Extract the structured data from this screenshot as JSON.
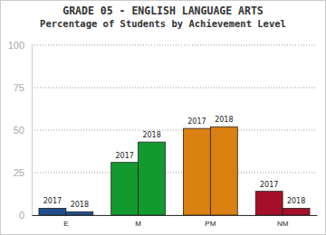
{
  "chart_data": {
    "type": "bar",
    "title": "GRADE 05 - ENGLISH LANGUAGE ARTS",
    "subtitle": "Percentage of Students by Achievement Level",
    "categories": [
      "E",
      "M",
      "PM",
      "NM"
    ],
    "series": [
      {
        "name": "2017",
        "values": [
          4,
          31,
          51,
          14
        ],
        "colors": [
          "#1f4e8c",
          "#139a2f",
          "#d98010",
          "#a50f2a"
        ]
      },
      {
        "name": "2018",
        "values": [
          2,
          43,
          52,
          4
        ],
        "colors": [
          "#1f4e8c",
          "#139a2f",
          "#d98010",
          "#a50f2a"
        ]
      }
    ],
    "ylim": [
      0,
      100
    ],
    "yticks": [
      0,
      25,
      50,
      75,
      100
    ],
    "grid": true
  }
}
